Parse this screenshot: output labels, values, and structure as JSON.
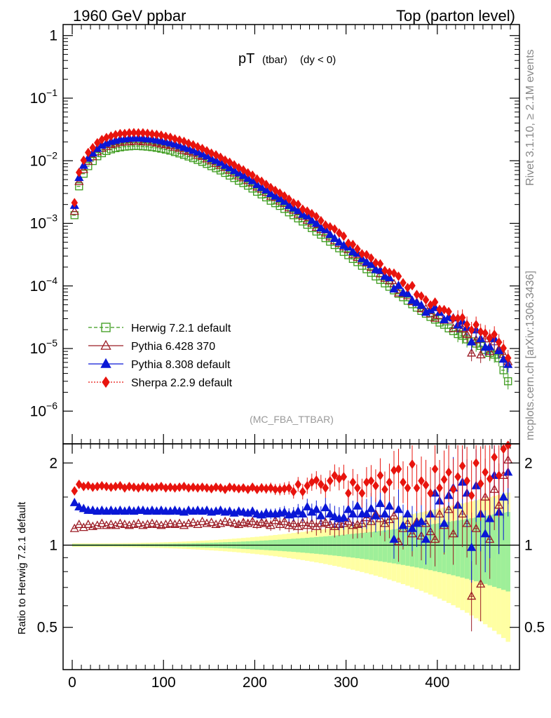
{
  "header": {
    "left": "1960 GeV ppbar",
    "right": "Top (parton level)"
  },
  "side": {
    "rivet": "Rivet 3.1.10, ≥ 2.1M events",
    "mcplots": "mcplots.cern.ch [arXiv:1306.3436]"
  },
  "plot_title": {
    "main": "pT",
    "sub1": "(tbar)",
    "sub2": "(dy < 0)"
  },
  "watermark": "(MC_FBA_TTBAR)",
  "ratio_ylabel": "Ratio to Herwig 7.2.1 default",
  "main_y_ticks": [
    {
      "v": 1,
      "label": "1"
    },
    {
      "v": 0.1,
      "base": "10",
      "exp": "−1"
    },
    {
      "v": 0.01,
      "base": "10",
      "exp": "−2"
    },
    {
      "v": 0.001,
      "base": "10",
      "exp": "−3"
    },
    {
      "v": 0.0001,
      "base": "10",
      "exp": "−4"
    },
    {
      "v": 1e-05,
      "base": "10",
      "exp": "−5"
    },
    {
      "v": 1e-06,
      "base": "10",
      "exp": "−6"
    }
  ],
  "ratio_y_ticks": [
    {
      "v": 2,
      "label": "2"
    },
    {
      "v": 1,
      "label": "1"
    },
    {
      "v": 0.5,
      "label": "0.5"
    }
  ],
  "x_ticks": [
    {
      "v": 0,
      "label": "0"
    },
    {
      "v": 100,
      "label": "100"
    },
    {
      "v": 200,
      "label": "200"
    },
    {
      "v": 300,
      "label": "300"
    },
    {
      "v": 400,
      "label": "400"
    }
  ],
  "legend": [
    {
      "label": "Herwig 7.2.1 default",
      "color": "#3a9a1a",
      "marker": "open-square",
      "dash": "dashed"
    },
    {
      "label": "Pythia 6.428 370",
      "color": "#9b1c25",
      "marker": "open-triangle",
      "dash": "solid"
    },
    {
      "label": "Pythia 8.308 default",
      "color": "#0a17d6",
      "marker": "filled-triangle",
      "dash": "solid"
    },
    {
      "label": "Sherpa 2.2.9 default",
      "color": "#e8140e",
      "marker": "filled-diamond",
      "dash": "dotted"
    }
  ],
  "chart_data": {
    "type": "scatter",
    "xlim": [
      -10,
      490
    ],
    "main_ylim": [
      3e-07,
      1.5
    ],
    "main_yscale": "log",
    "ratio_ylim": [
      0.35,
      2.35
    ],
    "ratio_yscale": "log",
    "x": [
      2.5,
      7.5,
      12.5,
      17.5,
      22.5,
      27.5,
      32.5,
      37.5,
      42.5,
      47.5,
      52.5,
      57.5,
      62.5,
      67.5,
      72.5,
      77.5,
      82.5,
      87.5,
      92.5,
      97.5,
      102.5,
      107.5,
      112.5,
      117.5,
      122.5,
      127.5,
      132.5,
      137.5,
      142.5,
      147.5,
      152.5,
      157.5,
      162.5,
      167.5,
      172.5,
      177.5,
      182.5,
      187.5,
      192.5,
      197.5,
      202.5,
      207.5,
      212.5,
      217.5,
      222.5,
      227.5,
      232.5,
      237.5,
      242.5,
      247.5,
      252.5,
      257.5,
      262.5,
      267.5,
      272.5,
      277.5,
      282.5,
      287.5,
      292.5,
      297.5,
      302.5,
      307.5,
      312.5,
      317.5,
      322.5,
      327.5,
      332.5,
      337.5,
      342.5,
      347.5,
      352.5,
      357.5,
      362.5,
      367.5,
      372.5,
      377.5,
      382.5,
      387.5,
      392.5,
      397.5,
      402.5,
      407.5,
      412.5,
      417.5,
      422.5,
      427.5,
      432.5,
      437.5,
      442.5,
      447.5,
      452.5,
      457.5,
      462.5,
      467.5,
      472.5,
      477.5
    ],
    "series": [
      {
        "name": "Herwig 7.2.1 default",
        "values": [
          0.00135,
          0.0039,
          0.0062,
          0.0082,
          0.0099,
          0.0118,
          0.0132,
          0.0143,
          0.0152,
          0.0159,
          0.0164,
          0.0168,
          0.017,
          0.0172,
          0.0172,
          0.017,
          0.0168,
          0.0165,
          0.0161,
          0.0156,
          0.0151,
          0.0145,
          0.0138,
          0.0131,
          0.0124,
          0.0117,
          0.011,
          0.0103,
          0.0096,
          0.0089,
          0.0082,
          0.0076,
          0.007,
          0.0064,
          0.0058,
          0.0053,
          0.0048,
          0.0044,
          0.004,
          0.0036,
          0.0032,
          0.0029,
          0.0026,
          0.0023,
          0.0021,
          0.0019,
          0.0017,
          0.0015,
          0.00135,
          0.0012,
          0.00107,
          0.00095,
          0.00084,
          0.00074,
          0.00066,
          0.00058,
          0.00051,
          0.00045,
          0.0004,
          0.00035,
          0.00031,
          0.00027,
          0.00024,
          0.00021,
          0.000185,
          0.000162,
          0.000142,
          0.000125,
          0.00011,
          9.7e-05,
          8.5e-05,
          7.5e-05,
          6.6e-05,
          5.8e-05,
          5.1e-05,
          4.5e-05,
          4e-05,
          3.6e-05,
          3.2e-05,
          2.9e-05,
          2.6e-05,
          2.4e-05,
          2.1e-05,
          1.9e-05,
          1.7e-05,
          1.6e-05,
          1.4e-05,
          1.3e-05,
          1.2e-05,
          1.1e-05,
          9.5e-06,
          8.5e-06,
          8e-06,
          7e-06,
          4.5e-06,
          3e-06
        ]
      },
      {
        "name": "Pythia 6.428 370",
        "ratio": [
          1.15,
          1.19,
          1.16,
          1.19,
          1.17,
          1.18,
          1.2,
          1.18,
          1.19,
          1.18,
          1.2,
          1.19,
          1.18,
          1.19,
          1.2,
          1.18,
          1.19,
          1.2,
          1.19,
          1.18,
          1.19,
          1.2,
          1.19,
          1.2,
          1.18,
          1.2,
          1.21,
          1.19,
          1.22,
          1.2,
          1.21,
          1.19,
          1.2,
          1.22,
          1.21,
          1.2,
          1.19,
          1.21,
          1.2,
          1.22,
          1.19,
          1.21,
          1.2,
          1.18,
          1.23,
          1.19,
          1.22,
          1.18,
          1.2,
          1.17,
          1.21,
          1.18,
          1.2,
          1.17,
          1.2,
          1.21,
          1.19,
          1.17,
          1.19,
          1.2,
          1.22,
          1.18,
          1.19,
          1.2,
          1.26,
          1.22,
          1.3,
          1.25,
          1.2,
          1.24,
          1.28,
          1.03,
          1.15,
          1.2,
          1.1,
          1.22,
          1.08,
          1.2,
          1.12,
          1.05,
          1.3,
          1.18,
          1.35,
          1.1,
          1.4,
          1.3,
          1.2,
          0.65,
          1.15,
          0.72,
          1.5,
          1.05,
          1.6,
          1.4,
          1.8,
          2.05
        ]
      },
      {
        "name": "Pythia 8.308 default",
        "ratio": [
          1.43,
          1.38,
          1.36,
          1.34,
          1.34,
          1.33,
          1.34,
          1.33,
          1.34,
          1.33,
          1.34,
          1.33,
          1.34,
          1.33,
          1.34,
          1.34,
          1.33,
          1.34,
          1.33,
          1.34,
          1.33,
          1.33,
          1.34,
          1.33,
          1.32,
          1.34,
          1.33,
          1.34,
          1.33,
          1.34,
          1.32,
          1.33,
          1.34,
          1.32,
          1.33,
          1.31,
          1.33,
          1.32,
          1.31,
          1.33,
          1.3,
          1.29,
          1.31,
          1.3,
          1.3,
          1.31,
          1.32,
          1.29,
          1.3,
          1.33,
          1.3,
          1.38,
          1.32,
          1.35,
          1.28,
          1.37,
          1.3,
          1.27,
          1.25,
          1.26,
          1.35,
          1.3,
          1.39,
          1.3,
          1.3,
          1.36,
          1.28,
          1.42,
          1.3,
          1.39,
          1.05,
          1.35,
          1.18,
          1.3,
          1.15,
          1.2,
          1.22,
          1.05,
          1.3,
          1.55,
          1.45,
          1.2,
          1.52,
          1.62,
          1.4,
          1.7,
          1.55,
          0.98,
          1.65,
          1.3,
          1.1,
          1.25,
          1.8,
          1.32,
          1.5,
          1.85
        ]
      },
      {
        "name": "Sherpa 2.2.9 default",
        "ratio": [
          1.58,
          1.67,
          1.64,
          1.65,
          1.63,
          1.64,
          1.65,
          1.64,
          1.63,
          1.64,
          1.65,
          1.62,
          1.64,
          1.63,
          1.62,
          1.64,
          1.63,
          1.62,
          1.63,
          1.64,
          1.62,
          1.63,
          1.62,
          1.63,
          1.64,
          1.62,
          1.63,
          1.62,
          1.63,
          1.62,
          1.61,
          1.63,
          1.62,
          1.6,
          1.63,
          1.62,
          1.61,
          1.62,
          1.6,
          1.63,
          1.6,
          1.62,
          1.61,
          1.62,
          1.6,
          1.6,
          1.61,
          1.62,
          1.57,
          1.67,
          1.57,
          1.65,
          1.7,
          1.73,
          1.67,
          1.62,
          1.72,
          1.8,
          1.75,
          1.78,
          1.55,
          1.7,
          1.62,
          1.55,
          1.7,
          1.72,
          1.65,
          1.8,
          1.6,
          1.7,
          1.88,
          1.9,
          1.7,
          1.62,
          1.98,
          1.62,
          1.72,
          1.66,
          1.55,
          1.9,
          1.62,
          1.74,
          1.85,
          1.6,
          1.78,
          1.95,
          1.72,
          1.52,
          2.0,
          1.68,
          1.85,
          1.75,
          2.1,
          1.8,
          2.25,
          2.35
        ]
      }
    ]
  }
}
